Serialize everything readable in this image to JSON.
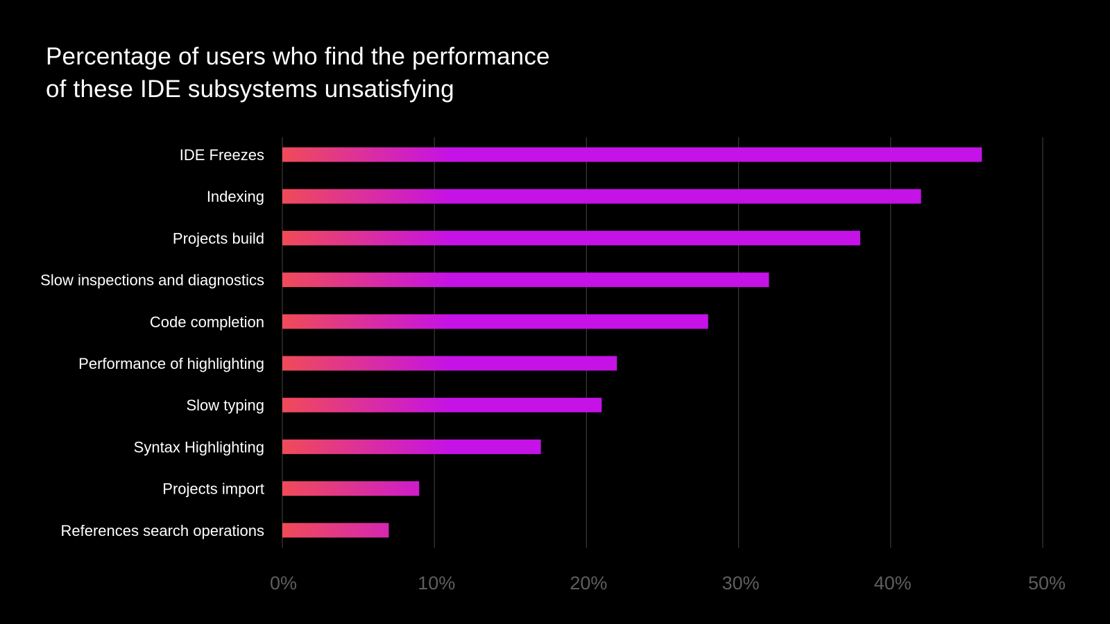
{
  "chart_data": {
    "type": "bar",
    "orientation": "horizontal",
    "title_lines": [
      "Percentage of users who find the performance",
      "of these IDE subsystems unsatisfying"
    ],
    "categories": [
      "IDE Freezes",
      "Indexing",
      "Projects build",
      "Slow inspections and diagnostics",
      "Code completion",
      "Performance of highlighting",
      "Slow typing",
      "Syntax Highlighting",
      "Projects import",
      "References search operations"
    ],
    "values": [
      46,
      42,
      38,
      32,
      28,
      22,
      21,
      17,
      9,
      7
    ],
    "unit": "%",
    "xlim": [
      0,
      50
    ],
    "xticks": [
      0,
      10,
      20,
      30,
      40,
      50
    ],
    "xtick_labels": [
      "0%",
      "10%",
      "20%",
      "30%",
      "40%",
      "50%"
    ],
    "grid": true,
    "colors": {
      "background": "#000000",
      "bar": "#c512e6",
      "bar_gradient_start": "#f04b58",
      "grid": "#3a3a3a",
      "tick_label": "#5e5e5e",
      "label": "#ffffff"
    }
  }
}
